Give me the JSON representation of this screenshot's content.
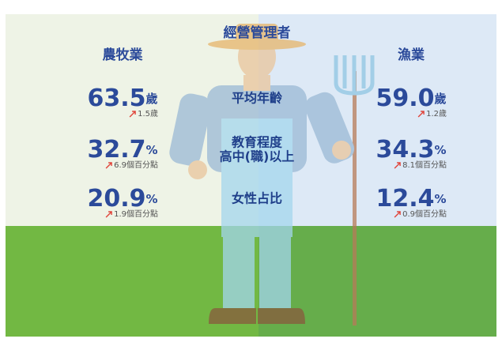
{
  "header": {
    "title": "經營管理者"
  },
  "columns": [
    {
      "label": "農牧業"
    },
    {
      "label": "漁業"
    }
  ],
  "rows": [
    {
      "label": [
        "平均年齡"
      ],
      "cells": [
        {
          "value": "63.5",
          "unit": "歲",
          "change": "1.5歲"
        },
        {
          "value": "59.0",
          "unit": "歲",
          "change": "1.2歲"
        }
      ]
    },
    {
      "label": [
        "教育程度",
        "高中(職)以上"
      ],
      "cells": [
        {
          "value": "32.7",
          "unit": "%",
          "change": "6.9個百分點"
        },
        {
          "value": "34.3",
          "unit": "%",
          "change": "8.1個百分點"
        }
      ]
    },
    {
      "label": [
        "女性占比"
      ],
      "cells": [
        {
          "value": "20.9",
          "unit": "%",
          "change": "1.9個百分點"
        },
        {
          "value": "12.4",
          "unit": "%",
          "change": "0.9個百分點"
        }
      ]
    }
  ]
}
